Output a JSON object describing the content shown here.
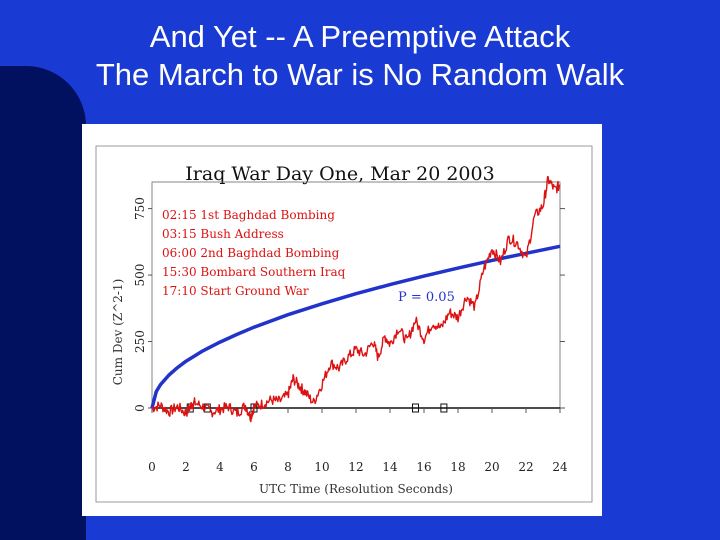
{
  "slide": {
    "title_line1": "And Yet -- A Preemptive Attack",
    "title_line2": "The March to War is No Random Walk"
  },
  "chart_data": {
    "type": "line",
    "title": "Iraq War Day One, Mar 20 2003",
    "xlabel": "UTC Time (Resolution Seconds)",
    "ylabel": "Cum Dev (Z^2-1)",
    "xlim": [
      0,
      24
    ],
    "ylim": [
      0,
      850
    ],
    "x_ticks": [
      0,
      2,
      4,
      6,
      8,
      10,
      12,
      14,
      16,
      18,
      20,
      22,
      24
    ],
    "x_tick_labels": [
      "0",
      "2",
      "4",
      "6",
      "8",
      "10",
      "12",
      "14",
      "16",
      "18",
      "20",
      "22",
      "24"
    ],
    "y_ticks": [
      0,
      250,
      500,
      750
    ],
    "y_tick_labels": [
      "0",
      "250",
      "500",
      "750"
    ],
    "grid": false,
    "annotations": [
      "02:15 1st Baghdad Bombing",
      "03:15 Bush Address",
      "06:00 2nd Baghdad Bombing",
      "15:30 Bombard Southern Iraq",
      "17:10 Start Ground War"
    ],
    "event_times": [
      2.25,
      3.25,
      6.0,
      15.5,
      17.17
    ],
    "p_label": "P = 0.05",
    "envelope": {
      "color": "#2233cc",
      "x": [
        0,
        0.25,
        0.5,
        1,
        1.5,
        2,
        3,
        4,
        5,
        6,
        8,
        10,
        12,
        14,
        16,
        18,
        20,
        22,
        24
      ],
      "y": [
        0,
        62,
        88,
        124,
        152,
        176,
        215,
        248,
        277,
        304,
        351,
        392,
        430,
        464,
        496,
        526,
        555,
        582,
        608
      ]
    },
    "series": [
      {
        "color": "#dd1111",
        "x": [
          0,
          0.5,
          1,
          1.5,
          2,
          2.3,
          2.5,
          3,
          3.5,
          4,
          4.5,
          5,
          5.5,
          5.8,
          6,
          6.5,
          7,
          7.5,
          8,
          8.3,
          8.7,
          9,
          9.5,
          10,
          10.5,
          11,
          11.5,
          12,
          12.5,
          13,
          13.3,
          13.7,
          14,
          14.5,
          15,
          15.5,
          16,
          16.5,
          17,
          17.5,
          18,
          18.5,
          19,
          19.5,
          20,
          20.5,
          21,
          21.5,
          22,
          22.5,
          23,
          23.3,
          23.7,
          24
        ],
        "y": [
          0,
          10,
          -15,
          5,
          -20,
          10,
          20,
          5,
          -15,
          -5,
          5,
          -20,
          10,
          -35,
          5,
          15,
          30,
          25,
          50,
          110,
          80,
          60,
          20,
          90,
          170,
          150,
          190,
          220,
          200,
          250,
          190,
          270,
          240,
          300,
          250,
          330,
          260,
          320,
          300,
          360,
          340,
          420,
          380,
          520,
          600,
          550,
          640,
          620,
          560,
          720,
          760,
          860,
          820,
          840
        ]
      }
    ]
  }
}
